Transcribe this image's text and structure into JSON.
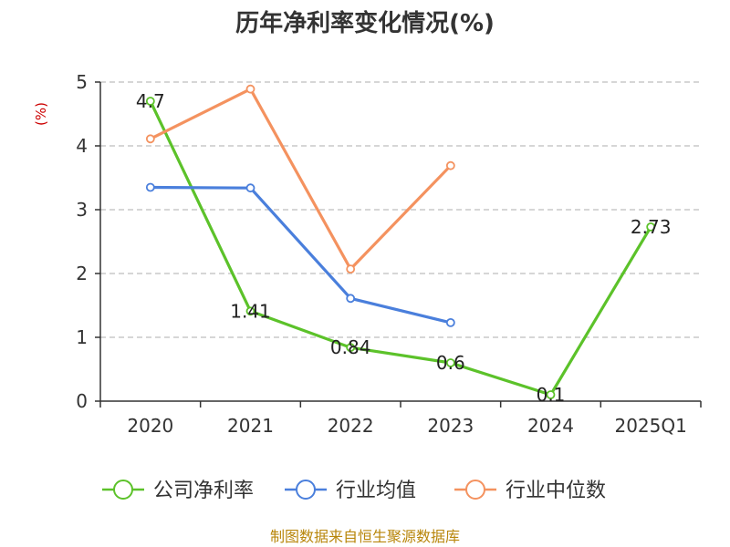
{
  "chart_data": {
    "type": "line",
    "title": "历年净利率变化情况(%)",
    "ylabel": "(%)",
    "xlabel": "",
    "categories": [
      "2020",
      "2021",
      "2022",
      "2023",
      "2024",
      "2025Q1"
    ],
    "ylim": [
      0,
      5
    ],
    "yticks": [
      0,
      1,
      2,
      3,
      4,
      5
    ],
    "grid": true,
    "legend_position": "bottom",
    "series": [
      {
        "name": "公司净利率",
        "color": "#5cc22a",
        "values": [
          4.7,
          1.41,
          0.84,
          0.6,
          0.1,
          2.73
        ],
        "labels": [
          "4.7",
          "1.41",
          "0.84",
          "0.6",
          "0.1",
          "2.73"
        ]
      },
      {
        "name": "行业均值",
        "color": "#4a7fdc",
        "values": [
          3.35,
          3.34,
          1.61,
          1.23,
          null,
          null
        ]
      },
      {
        "name": "行业中位数",
        "color": "#f4925f",
        "values": [
          4.11,
          4.89,
          2.07,
          3.69,
          null,
          null
        ]
      }
    ]
  },
  "source": "制图数据来自恒生聚源数据库"
}
